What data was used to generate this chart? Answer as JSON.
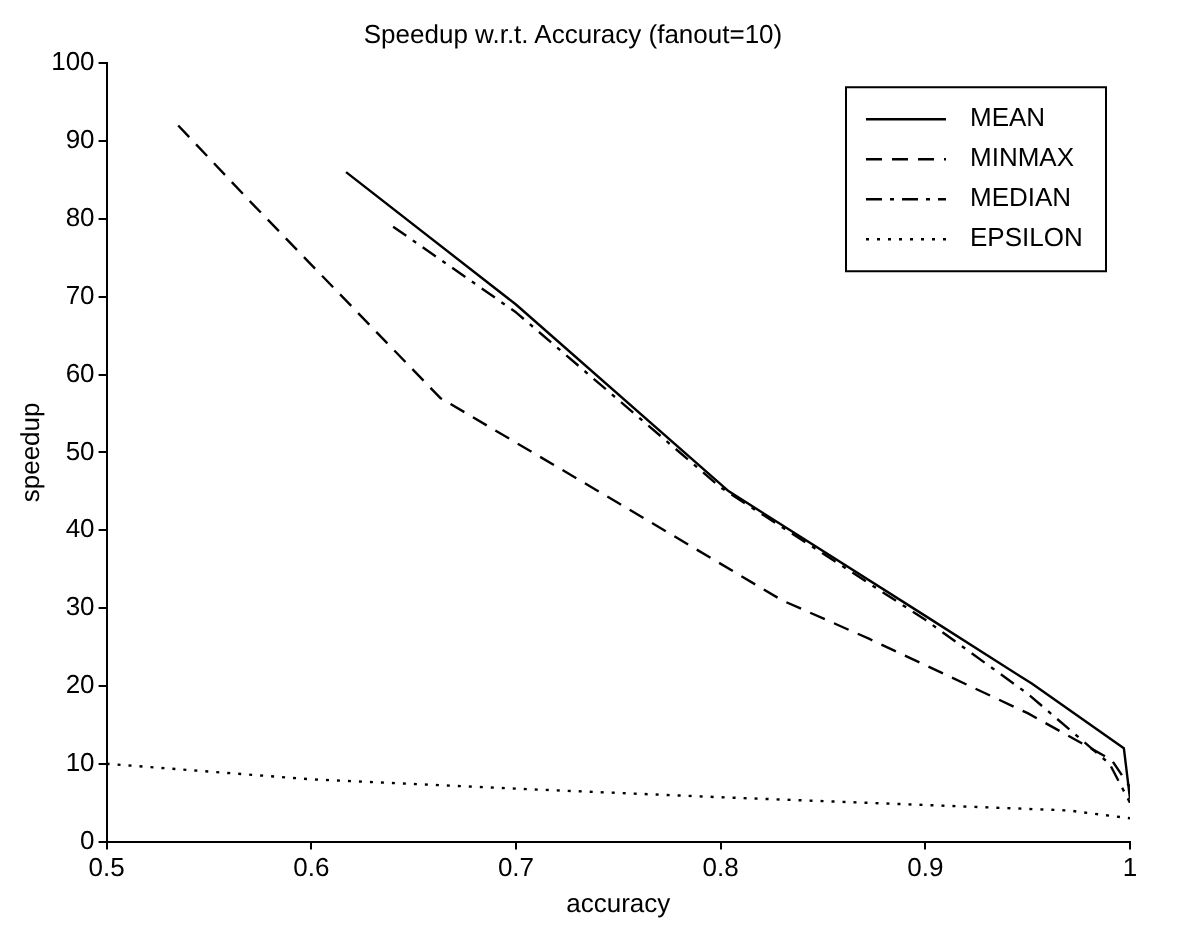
{
  "chart_data": {
    "type": "line",
    "title": "Speedup w.r.t. Accuracy (fanout=10)",
    "xlabel": "accuracy",
    "ylabel": "speedup",
    "xlim": [
      0.5,
      1
    ],
    "xticks": [
      0.5,
      0.6,
      0.7,
      0.8,
      0.9,
      1
    ],
    "ylim": [
      0,
      100
    ],
    "yticks": [
      0,
      10,
      20,
      30,
      40,
      50,
      60,
      70,
      80,
      90,
      100
    ],
    "grid": false,
    "legend": "top right",
    "marker": "none",
    "series": [
      {
        "name": "MEAN",
        "color": "#000000",
        "line_style": "solid",
        "x": [
          0.617,
          0.7,
          0.804,
          0.9,
          0.952,
          0.997,
          1.0
        ],
        "values": [
          86,
          69,
          45,
          29,
          20.3,
          12,
          5.5
        ]
      },
      {
        "name": "MINMAX",
        "color": "#000000",
        "line_style": "dashed",
        "x": [
          0.535,
          0.571,
          0.663,
          0.75,
          0.83,
          0.873,
          0.95,
          0.991,
          1.0
        ],
        "values": [
          92,
          82,
          57,
          43.5,
          31,
          26,
          16.5,
          10.5,
          7
        ]
      },
      {
        "name": "MEDIAN",
        "color": "#000000",
        "line_style": "dashdot",
        "x": [
          0.64,
          0.7,
          0.8,
          0.9,
          0.95,
          0.99,
          1.0
        ],
        "values": [
          79,
          68,
          45.5,
          28.5,
          19,
          10,
          5
        ]
      },
      {
        "name": "EPSILON",
        "color": "#000000",
        "line_style": "dotted",
        "x": [
          0.5,
          0.6,
          0.7,
          0.8,
          0.9,
          0.97,
          1.0
        ],
        "values": [
          10,
          8,
          6.8,
          5.7,
          4.7,
          4,
          3
        ]
      }
    ]
  }
}
